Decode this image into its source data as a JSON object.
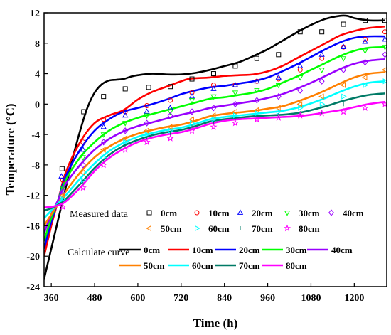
{
  "chart_data": {
    "type": "line",
    "xlabel": "Time (h)",
    "ylabel": "Temperature (°C)",
    "xlim": [
      340,
      1290
    ],
    "ylim": [
      -24,
      12
    ],
    "xticks": [
      360,
      480,
      600,
      720,
      840,
      960,
      1080,
      1200
    ],
    "yticks": [
      -24,
      -20,
      -16,
      -12,
      -8,
      -4,
      0,
      4,
      8,
      12
    ],
    "tick_labels_x": [
      "360",
      "480",
      "600",
      "720",
      "840",
      "960",
      "1080",
      "1200"
    ],
    "tick_labels_y": [
      "-24",
      "-20",
      "-16",
      "-12",
      "-8",
      "-4",
      "0",
      "4",
      "8",
      "12"
    ],
    "legend": {
      "measured_title": "Measured data",
      "calculated_title": "Calculate curve",
      "placement": "lower-center"
    },
    "series": [
      {
        "name": "0cm",
        "color": "#000000",
        "marker": "square",
        "measured": {
          "x": [
            390,
            450,
            505,
            565,
            630,
            690,
            750,
            810,
            870,
            930,
            990,
            1050,
            1110,
            1170,
            1230,
            1285
          ],
          "y": [
            -8.5,
            -1,
            1,
            2,
            2.2,
            2.3,
            3.3,
            4,
            5,
            6,
            6.5,
            9.5,
            9.5,
            10.5,
            11,
            11
          ]
        },
        "curve": {
          "x": [
            340,
            360,
            380,
            400,
            420,
            440,
            460,
            480,
            500,
            520,
            540,
            560,
            580,
            600,
            640,
            680,
            720,
            760,
            800,
            840,
            880,
            920,
            960,
            1000,
            1040,
            1080,
            1120,
            1160,
            1180,
            1200,
            1240,
            1285
          ],
          "y": [
            -23,
            -19,
            -15,
            -11,
            -7,
            -3.5,
            -0.5,
            1.5,
            2.6,
            3.1,
            3.2,
            3.3,
            3.6,
            3.8,
            4.0,
            3.9,
            3.9,
            4.1,
            4.5,
            5.0,
            5.5,
            6.3,
            7.2,
            8.3,
            9.4,
            10.4,
            11.2,
            11.6,
            11.6,
            11.3,
            11.0,
            11.0
          ]
        }
      },
      {
        "name": "10cm",
        "color": "#ff0000",
        "marker": "circle",
        "measured": {
          "x": [
            392,
            448,
            505,
            565,
            625,
            690,
            750,
            810,
            870,
            930,
            990,
            1050,
            1110,
            1170,
            1230,
            1285
          ],
          "y": [
            -10,
            -5,
            -2,
            -1,
            -0.2,
            0.5,
            1.5,
            2.5,
            2.5,
            3,
            3.3,
            4.5,
            6,
            7.5,
            8.5,
            9.5
          ]
        },
        "curve": {
          "x": [
            340,
            360,
            380,
            400,
            440,
            480,
            520,
            560,
            600,
            640,
            680,
            720,
            740,
            760,
            800,
            840,
            880,
            920,
            960,
            1000,
            1040,
            1080,
            1120,
            1160,
            1200,
            1240,
            1285
          ],
          "y": [
            -20,
            -16,
            -12.5,
            -9,
            -5,
            -2.5,
            -1.5,
            -0.8,
            0.6,
            1.6,
            2.3,
            3.0,
            3.3,
            3.4,
            3.5,
            3.7,
            3.8,
            3.9,
            4.3,
            5.0,
            6.0,
            7.0,
            8.0,
            9.0,
            9.6,
            10.0,
            10.2
          ]
        }
      },
      {
        "name": "20cm",
        "color": "#0000ff",
        "marker": "triangle-up",
        "measured": {
          "x": [
            388,
            448,
            505,
            565,
            625,
            690,
            750,
            810,
            870,
            930,
            990,
            1050,
            1110,
            1170,
            1230,
            1285
          ],
          "y": [
            -9.5,
            -6,
            -3,
            -1.5,
            -1,
            -0.5,
            1,
            2,
            2.5,
            3,
            3.5,
            5,
            6.5,
            7.5,
            8.2,
            8.5
          ]
        },
        "curve": {
          "x": [
            340,
            360,
            380,
            400,
            440,
            480,
            520,
            560,
            600,
            640,
            680,
            720,
            760,
            800,
            840,
            880,
            920,
            960,
            1000,
            1040,
            1080,
            1120,
            1160,
            1200,
            1240,
            1285
          ],
          "y": [
            -19,
            -15.5,
            -12.5,
            -9.5,
            -6,
            -3.5,
            -2,
            -1,
            -0.5,
            0,
            0.6,
            1.3,
            1.8,
            2.2,
            2.4,
            2.7,
            3.0,
            3.5,
            4.3,
            5.2,
            6.2,
            7.2,
            8.1,
            8.7,
            8.9,
            8.9
          ]
        }
      },
      {
        "name": "30cm",
        "color": "#00ff00",
        "marker": "triangle-down",
        "measured": {
          "x": [
            392,
            448,
            505,
            565,
            625,
            690,
            750,
            810,
            870,
            930,
            990,
            1050,
            1110,
            1170,
            1230,
            1285
          ],
          "y": [
            -11,
            -7,
            -4,
            -2.5,
            -1.5,
            -1,
            0.5,
            1,
            1.5,
            1.8,
            2.5,
            3.5,
            4.5,
            6,
            7,
            7.5
          ]
        },
        "curve": {
          "x": [
            340,
            360,
            380,
            400,
            440,
            480,
            520,
            560,
            600,
            640,
            680,
            720,
            760,
            800,
            840,
            880,
            920,
            960,
            1000,
            1040,
            1080,
            1120,
            1160,
            1200,
            1240,
            1285
          ],
          "y": [
            -18,
            -15,
            -12.5,
            -10,
            -7,
            -5,
            -3.5,
            -2.5,
            -1.8,
            -1.3,
            -0.8,
            -0.3,
            0.2,
            0.7,
            0.9,
            1.2,
            1.5,
            2.0,
            2.8,
            3.6,
            4.5,
            5.4,
            6.3,
            7.0,
            7.4,
            7.5
          ]
        }
      },
      {
        "name": "40cm",
        "color": "#9900ff",
        "marker": "diamond",
        "measured": {
          "x": [
            392,
            448,
            505,
            565,
            625,
            690,
            750,
            810,
            870,
            930,
            990,
            1050,
            1110,
            1170,
            1230,
            1285
          ],
          "y": [
            -11.5,
            -8,
            -5,
            -3.5,
            -2.5,
            -1.5,
            -1,
            -0.5,
            0,
            0.5,
            1,
            1.8,
            3,
            4.5,
            5.5,
            6.5
          ]
        },
        "curve": {
          "x": [
            340,
            360,
            380,
            400,
            440,
            480,
            520,
            560,
            600,
            640,
            680,
            720,
            760,
            800,
            840,
            880,
            920,
            960,
            1000,
            1040,
            1080,
            1120,
            1160,
            1200,
            1240,
            1285
          ],
          "y": [
            -17,
            -14.5,
            -12.5,
            -10.5,
            -8,
            -6,
            -4.6,
            -3.6,
            -2.9,
            -2.4,
            -1.9,
            -1.4,
            -1.0,
            -0.5,
            -0.2,
            0.1,
            0.4,
            0.8,
            1.3,
            2.0,
            2.8,
            3.7,
            4.6,
            5.3,
            5.7,
            5.9
          ]
        }
      },
      {
        "name": "50cm",
        "color": "#ff8000",
        "marker": "triangle-left",
        "measured": {
          "x": [
            392,
            448,
            505,
            565,
            625,
            690,
            750,
            810,
            870,
            930,
            990,
            1050,
            1110,
            1170,
            1230,
            1285
          ],
          "y": [
            -12,
            -9,
            -6,
            -4.5,
            -3.5,
            -3,
            -2,
            -1.5,
            -1,
            -0.8,
            -0.5,
            0,
            1,
            2.5,
            3.5,
            4.5
          ]
        },
        "curve": {
          "x": [
            340,
            360,
            380,
            400,
            440,
            480,
            520,
            560,
            600,
            640,
            680,
            720,
            760,
            800,
            840,
            880,
            920,
            960,
            1000,
            1040,
            1080,
            1120,
            1160,
            1200,
            1240,
            1285
          ],
          "y": [
            -16,
            -14.5,
            -13,
            -11.5,
            -9,
            -7,
            -5.6,
            -4.6,
            -3.9,
            -3.4,
            -3.0,
            -2.7,
            -2.2,
            -1.6,
            -1.3,
            -1.1,
            -0.9,
            -0.6,
            -0.3,
            0.3,
            1.0,
            1.8,
            2.7,
            3.5,
            4.0,
            4.2
          ]
        }
      },
      {
        "name": "60cm",
        "color": "#00ffff",
        "marker": "triangle-right",
        "measured": {
          "x": [
            392,
            448,
            505,
            565,
            625,
            690,
            750,
            810,
            870,
            930,
            990,
            1050,
            1110,
            1170,
            1230,
            1285
          ],
          "y": [
            -12.5,
            -10,
            -7,
            -5,
            -4,
            -3.5,
            -2.5,
            -2,
            -1.5,
            -1.2,
            -1,
            -0.5,
            0,
            1,
            2.5,
            3
          ]
        },
        "curve": {
          "x": [
            340,
            360,
            380,
            400,
            440,
            480,
            520,
            560,
            600,
            640,
            680,
            720,
            760,
            800,
            840,
            880,
            920,
            960,
            1000,
            1040,
            1080,
            1120,
            1160,
            1200,
            1240,
            1285
          ],
          "y": [
            -15,
            -14,
            -13,
            -12,
            -9.8,
            -7.8,
            -6.2,
            -5.1,
            -4.3,
            -3.8,
            -3.4,
            -3.1,
            -2.6,
            -2.0,
            -1.7,
            -1.5,
            -1.3,
            -1.1,
            -0.9,
            -0.5,
            0.1,
            0.8,
            1.6,
            2.3,
            2.8,
            3.0
          ]
        }
      },
      {
        "name": "70cm",
        "color": "#007a66",
        "marker": "dash",
        "measured": {
          "x": [
            392,
            448,
            505,
            565,
            625,
            690,
            750,
            810,
            870,
            930,
            990,
            1050,
            1110,
            1170,
            1230,
            1285
          ],
          "y": [
            -13,
            -10.5,
            -7.5,
            -5.5,
            -4.5,
            -4,
            -3,
            -2.5,
            -2,
            -1.8,
            -1.5,
            -1.2,
            -1,
            0,
            1,
            1.5
          ]
        },
        "curve": {
          "x": [
            340,
            360,
            380,
            400,
            440,
            480,
            520,
            560,
            600,
            640,
            680,
            720,
            760,
            800,
            840,
            880,
            920,
            960,
            1000,
            1040,
            1080,
            1120,
            1160,
            1200,
            1240,
            1285
          ],
          "y": [
            -14,
            -13.7,
            -13.2,
            -12.5,
            -10.5,
            -8.4,
            -6.7,
            -5.5,
            -4.7,
            -4.1,
            -3.7,
            -3.4,
            -2.9,
            -2.3,
            -2.0,
            -1.8,
            -1.6,
            -1.5,
            -1.4,
            -1.2,
            -0.8,
            -0.3,
            0.3,
            0.8,
            1.2,
            1.4
          ]
        }
      },
      {
        "name": "80cm",
        "color": "#ff00ff",
        "marker": "star",
        "measured": {
          "x": [
            392,
            448,
            505,
            565,
            625,
            690,
            750,
            810,
            870,
            930,
            990,
            1050,
            1110,
            1170,
            1230,
            1285
          ],
          "y": [
            -13.5,
            -11,
            -8,
            -6,
            -5,
            -4.5,
            -3.5,
            -3,
            -2.5,
            -2,
            -1.8,
            -1.5,
            -1.2,
            -1,
            -0.5,
            0
          ]
        },
        "curve": {
          "x": [
            340,
            360,
            380,
            400,
            440,
            480,
            520,
            560,
            600,
            640,
            680,
            720,
            760,
            800,
            840,
            880,
            920,
            960,
            1000,
            1040,
            1080,
            1120,
            1160,
            1200,
            1240,
            1285
          ],
          "y": [
            -13.6,
            -13.5,
            -13.3,
            -12.8,
            -11.0,
            -8.8,
            -7.1,
            -5.9,
            -5.0,
            -4.4,
            -4.0,
            -3.7,
            -3.2,
            -2.6,
            -2.2,
            -2.0,
            -1.9,
            -1.8,
            -1.7,
            -1.6,
            -1.4,
            -1.1,
            -0.8,
            -0.4,
            0.0,
            0.3
          ]
        }
      }
    ]
  }
}
